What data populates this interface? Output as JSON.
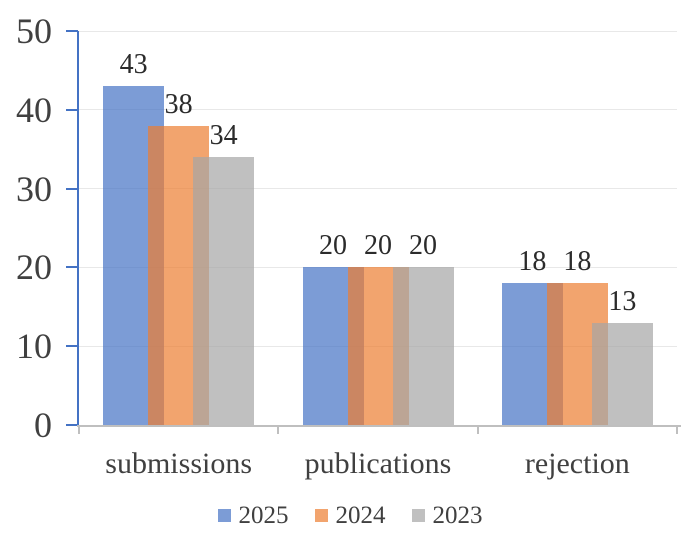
{
  "chart_data": {
    "type": "bar",
    "title": "",
    "categories": [
      "submissions",
      "publications",
      "rejection"
    ],
    "series": [
      {
        "name": "2025",
        "color": "#4472C4",
        "values": [
          43,
          20,
          18
        ]
      },
      {
        "name": "2024",
        "color": "#ED7D31",
        "values": [
          38,
          20,
          18
        ]
      },
      {
        "name": "2023",
        "color": "#A5A5A5",
        "values": [
          34,
          20,
          13
        ]
      }
    ],
    "bar_opacity": 0.7,
    "bar_style": "overlapping",
    "data_labels": true,
    "ylim": [
      0,
      50
    ],
    "yticks": [
      0,
      10,
      20,
      30,
      40,
      50
    ],
    "grid": true,
    "legend_position": "bottom",
    "colors": {
      "y_axis": "#4472C4",
      "x_axis": "#BFBFBF",
      "gridline": "#E8E8E8",
      "axis_text": "#404040",
      "value_text": "#2B2B2B",
      "background": "#FFFFFF"
    }
  }
}
